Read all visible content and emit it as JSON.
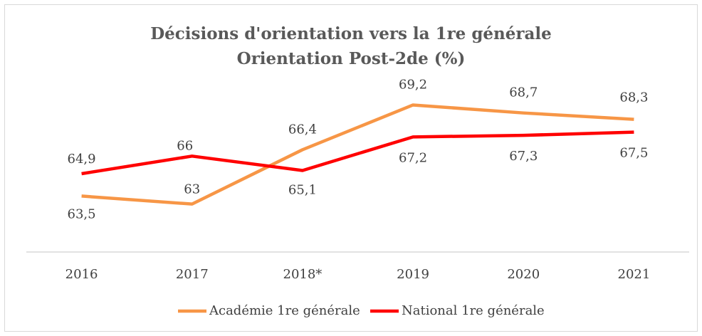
{
  "chart_data": {
    "type": "line",
    "title": [
      "Décisions d'orientation vers la 1re générale",
      "Orientation Post-2de (%)"
    ],
    "categories": [
      "2016",
      "2017",
      "2018*",
      "2019",
      "2020",
      "2021"
    ],
    "series": [
      {
        "name": "Académie 1re générale",
        "color": "#f79646",
        "values": [
          63.5,
          63,
          66.4,
          69.2,
          68.7,
          68.3
        ],
        "value_labels": [
          "63,5",
          "63",
          "66,4",
          "69,2",
          "68,7",
          "68,3"
        ]
      },
      {
        "name": "National 1re générale",
        "color": "#ff0000",
        "values": [
          64.9,
          66,
          65.1,
          67.2,
          67.3,
          67.5
        ],
        "value_labels": [
          "64,9",
          "66",
          "65,1",
          "67,2",
          "67,3",
          "67,5"
        ]
      }
    ],
    "ylim": [
      60,
      70
    ],
    "legend": "bottom"
  }
}
